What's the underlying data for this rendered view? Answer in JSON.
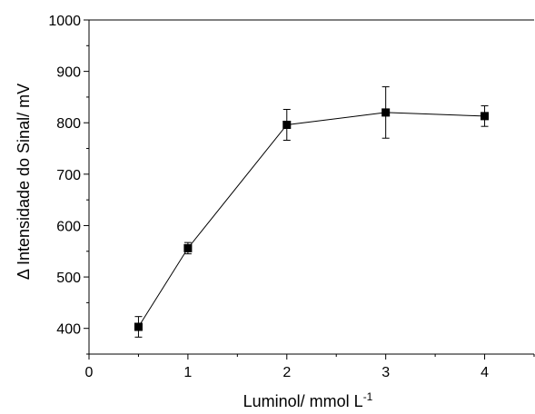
{
  "chart_data": {
    "type": "line",
    "xlabel": "Luminol/ mmol L",
    "xlabel_superscript": "-1",
    "ylabel": "Δ Intensidade do Sinal/ mV",
    "xlim": [
      0,
      4.5
    ],
    "ylim": [
      350,
      1000
    ],
    "x_ticks": [
      0,
      1,
      2,
      3,
      4
    ],
    "y_ticks": [
      400,
      500,
      600,
      700,
      800,
      900,
      1000
    ],
    "x_minor_step": 0.5,
    "y_minor_step": 50,
    "grid": false,
    "legend": "none",
    "series": [
      {
        "x": [
          0.5,
          1,
          2,
          3,
          4
        ],
        "y": [
          403,
          556,
          796,
          820,
          813
        ],
        "error": [
          20,
          11,
          30,
          50,
          20
        ],
        "color": "#000000",
        "marker": "square"
      }
    ]
  }
}
